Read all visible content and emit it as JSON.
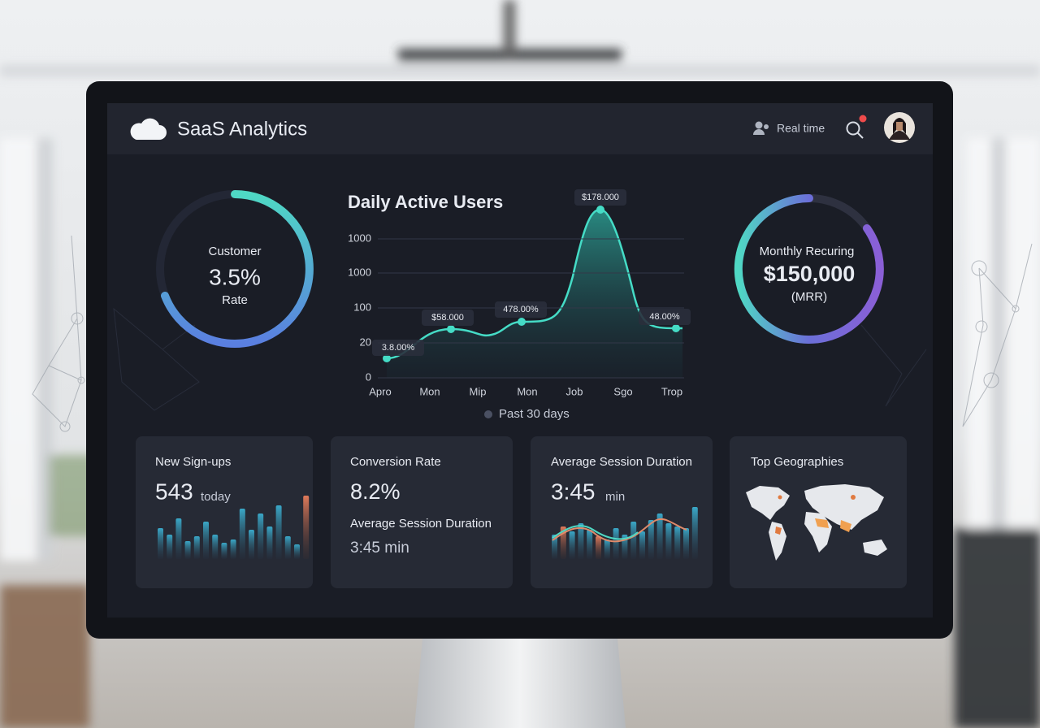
{
  "header": {
    "title": "SaaS Analytics",
    "status": "Real time"
  },
  "gauges": [
    {
      "label_top": "Customer",
      "value": "3.5%",
      "label_bottom": "Rate"
    },
    {
      "label_top": "Monthly Recuring",
      "value": "$150,000",
      "label_bottom": "(MRR)"
    }
  ],
  "main_chart": {
    "title": "Daily Active Users",
    "y_tick_labels": [
      "1000",
      "1000",
      "100",
      "20",
      "0"
    ],
    "x_tick_labels": [
      "Apro",
      "Mon",
      "Mip",
      "Mon",
      "Job",
      "Sgo",
      "Trop"
    ],
    "point_labels": [
      "3.8.00%",
      "$58.000",
      "478.00%",
      "$178.000",
      "48.00%"
    ],
    "legend": "Past 30 days"
  },
  "cards": [
    {
      "title": "New Sign-ups",
      "value": "543",
      "unit": "today"
    },
    {
      "title": "Conversion Rate",
      "value": "8.2%",
      "subtitle": "Average Session Duration",
      "subvalue": "3:45 min"
    },
    {
      "title": "Average Session Duration",
      "value": "3:45",
      "unit": "min"
    },
    {
      "title": "Top Geographies"
    }
  ]
}
